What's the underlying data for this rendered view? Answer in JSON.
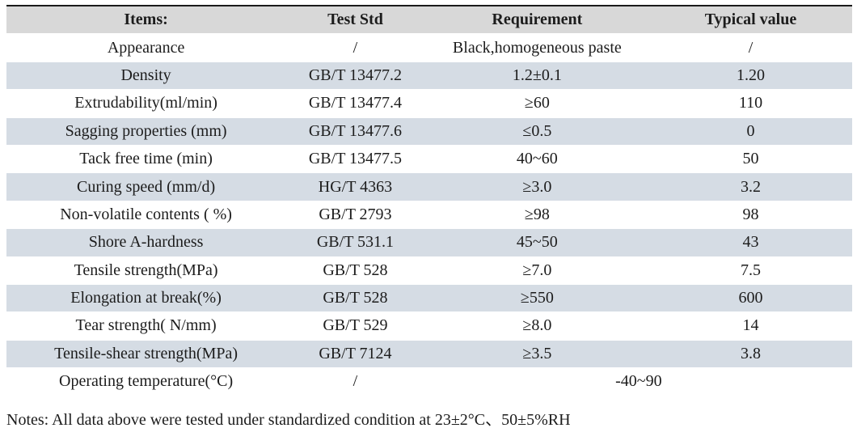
{
  "table": {
    "headers": [
      "Items:",
      "Test Std",
      "Requirement",
      "Typical value"
    ],
    "rows": [
      {
        "item": "Appearance",
        "std": "/",
        "req": "Black,homogeneous paste",
        "typ": "/"
      },
      {
        "item": "Density",
        "std": "GB/T 13477.2",
        "req": "1.2±0.1",
        "typ": "1.20"
      },
      {
        "item": "Extrudability(ml/min)",
        "std": "GB/T 13477.4",
        "req": "≥60",
        "typ": "110"
      },
      {
        "item": "Sagging properties (mm)",
        "std": "GB/T 13477.6",
        "req": "≤0.5",
        "typ": "0"
      },
      {
        "item": "Tack free time (min)",
        "std": "GB/T 13477.5",
        "req": "40~60",
        "typ": "50"
      },
      {
        "item": "Curing speed (mm/d)",
        "std": "HG/T 4363",
        "req": "≥3.0",
        "typ": "3.2"
      },
      {
        "item": "Non-volatile contents ( %)",
        "std": "GB/T 2793",
        "req": "≥98",
        "typ": "98"
      },
      {
        "item": "Shore A-hardness",
        "std": "GB/T 531.1",
        "req": "45~50",
        "typ": "43"
      },
      {
        "item": "Tensile strength(MPa)",
        "std": "GB/T 528",
        "req": "≥7.0",
        "typ": "7.5"
      },
      {
        "item": "Elongation at break(%)",
        "std": "GB/T 528",
        "req": "≥550",
        "typ": "600"
      },
      {
        "item": "Tear strength( N/mm)",
        "std": "GB/T 529",
        "req": "≥8.0",
        "typ": "14"
      },
      {
        "item": "Tensile-shear strength(MPa)",
        "std": "GB/T 7124",
        "req": "≥3.5",
        "typ": "3.8"
      },
      {
        "item": "Operating temperature(°C)",
        "std": "/",
        "req": "-40~90"
      }
    ],
    "colors": {
      "header_bg": "#d8d8d8",
      "stripe_bg": "#d5dce4",
      "top_border": "#1a1a1a"
    }
  },
  "notes": "Notes: All data above were tested under standardized condition at 23±2°C、50±5%RH"
}
